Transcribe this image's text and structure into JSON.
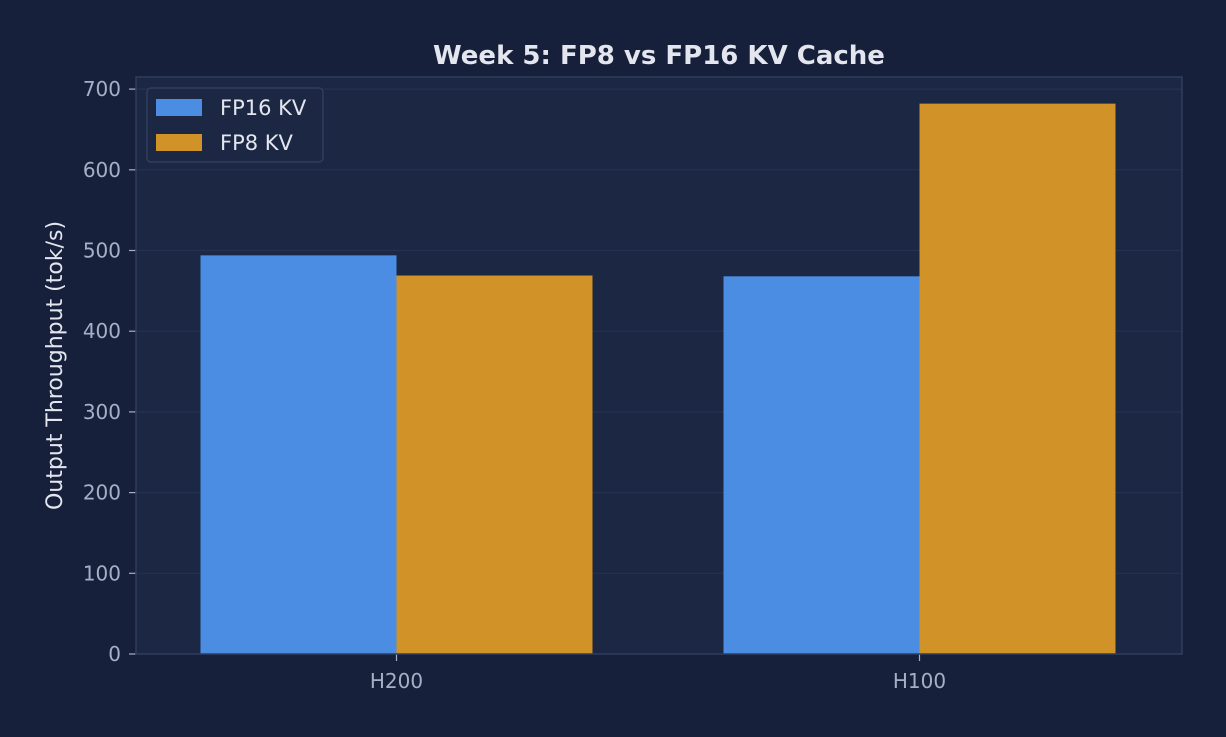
{
  "chart_data": {
    "type": "bar",
    "title": "Week 5: FP8 vs FP16 KV Cache",
    "xlabel": "",
    "ylabel": "Output Throughput (tok/s)",
    "categories": [
      "H200",
      "H100"
    ],
    "series": [
      {
        "name": "FP16 KV",
        "values": [
          494,
          468
        ],
        "color": "#4a8de3"
      },
      {
        "name": "FP8 KV",
        "values": [
          469,
          682
        ],
        "color": "#d19228"
      }
    ],
    "ylim": [
      0,
      715
    ],
    "yticks": [
      "0",
      "100",
      "200",
      "300",
      "400",
      "500",
      "600",
      "700"
    ],
    "grid": true,
    "legend_position": "top-left"
  },
  "colors": {
    "background": "#17203b",
    "plot_background": "#1b2743",
    "plot_border": "#2f3d5c",
    "grid": "#243252",
    "text": "#e3e6ee",
    "tick_text": "#a5b0c6"
  }
}
